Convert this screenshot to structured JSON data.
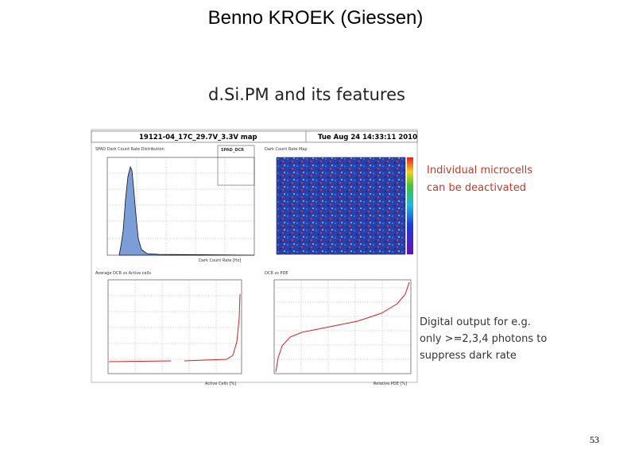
{
  "header": {
    "title": "Benno KROEK (Giessen)"
  },
  "slide": {
    "subtitle": "d.Si.PM and its features",
    "page_number": "53"
  },
  "screenshot": {
    "header": "19121-04_17C_29.7V_3.3V map",
    "timestamp": "Tue Aug 24 14:33:11 2010",
    "panels": [
      {
        "title": "SPAD Dark Count Rate Distribution",
        "stats_title": "SPAD_DCR",
        "x_label": "Dark Count Rate [Hz]"
      },
      {
        "title": "Dark Count Rate Map"
      },
      {
        "title": "Average DCR vs Active cells",
        "x_label": "Active Cells [%]"
      },
      {
        "title": "DCR vs PDE",
        "x_label": "Relative PDE [%]"
      }
    ]
  },
  "annotations": [
    {
      "lines": [
        "Individual microcells",
        "can be deactivated"
      ]
    },
    {
      "lines": [
        "Digital output for e.g.",
        "only >=2,3,4 photons to",
        "suppress dark rate"
      ]
    }
  ]
}
